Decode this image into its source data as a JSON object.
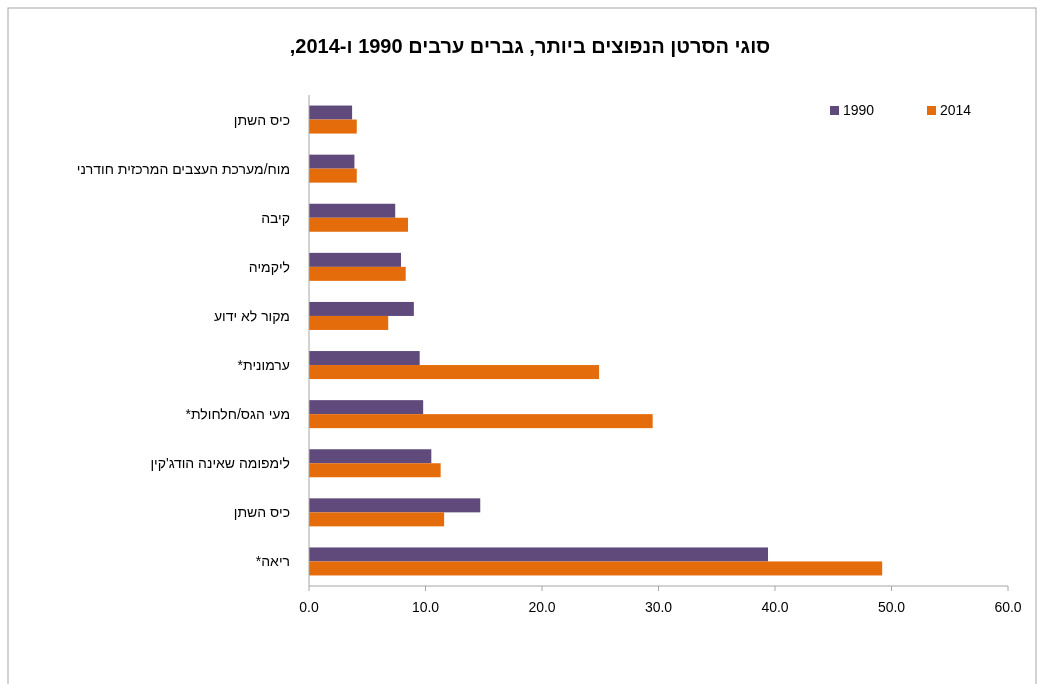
{
  "chart_data": {
    "type": "bar",
    "orientation": "horizontal",
    "title": "סוגי הסרטן הנפוצים ביותר, גברים ערבים 1990 ו-2014,",
    "categories": [
      "כיס השתן",
      "מוח/מערכת העצבים המרכזית חודרני",
      "קיבה",
      "ליקמיה",
      "מקור לא ידוע",
      "ערמונית*",
      "מעי הגס/חלחולת*",
      "לימפומה שאינה הודג'קין",
      "כיס השתן",
      "ריאה*"
    ],
    "series": [
      {
        "name": "1990",
        "color": "#604a7b",
        "values": [
          3.7,
          3.9,
          7.4,
          7.9,
          9.0,
          9.5,
          9.8,
          10.5,
          14.7,
          39.4
        ]
      },
      {
        "name": "2014",
        "color": "#e46c0a",
        "values": [
          4.1,
          4.1,
          8.5,
          8.3,
          6.8,
          24.9,
          29.5,
          11.3,
          11.6,
          49.2
        ]
      }
    ],
    "xlim": [
      0,
      60
    ],
    "xticks": [
      {
        "value": 0,
        "label": "0.0"
      },
      {
        "value": 10,
        "label": "10.0"
      },
      {
        "value": 20,
        "label": "20.0"
      },
      {
        "value": 30,
        "label": "30.0"
      },
      {
        "value": 40,
        "label": "40.0"
      },
      {
        "value": 50,
        "label": "50.0"
      },
      {
        "value": 60,
        "label": "60.0"
      }
    ],
    "legend": "top right"
  }
}
